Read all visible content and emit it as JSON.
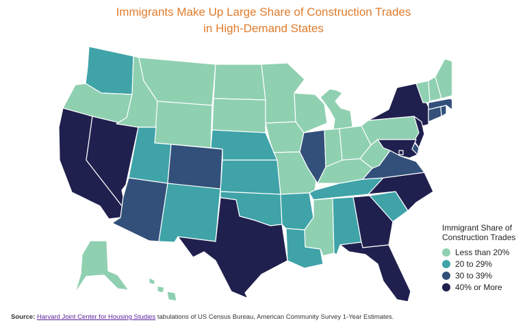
{
  "title": {
    "line1": "Immigrants Make Up Large Share of Construction Trades",
    "line2": "in High-Demand States"
  },
  "legend": {
    "title_line1": "Immigrant Share of",
    "title_line2": "Construction Trades",
    "items": [
      {
        "key": "lt20",
        "label": "Less than 20%",
        "color": "#8fd0b1"
      },
      {
        "key": "20to29",
        "label": "20 to 29%",
        "color": "#3fa3a8"
      },
      {
        "key": "30to39",
        "label": "30 to 39%",
        "color": "#32507a"
      },
      {
        "key": "40plus",
        "label": "40% or More",
        "color": "#20204f"
      }
    ]
  },
  "map": {
    "states": [
      {
        "abbr": "WA",
        "category": "20to29"
      },
      {
        "abbr": "OR",
        "category": "lt20"
      },
      {
        "abbr": "CA",
        "category": "40plus"
      },
      {
        "abbr": "NV",
        "category": "40plus"
      },
      {
        "abbr": "ID",
        "category": "lt20"
      },
      {
        "abbr": "MT",
        "category": "lt20"
      },
      {
        "abbr": "WY",
        "category": "lt20"
      },
      {
        "abbr": "UT",
        "category": "20to29"
      },
      {
        "abbr": "AZ",
        "category": "30to39"
      },
      {
        "abbr": "CO",
        "category": "30to39"
      },
      {
        "abbr": "NM",
        "category": "20to29"
      },
      {
        "abbr": "ND",
        "category": "lt20"
      },
      {
        "abbr": "SD",
        "category": "lt20"
      },
      {
        "abbr": "NE",
        "category": "20to29"
      },
      {
        "abbr": "KS",
        "category": "20to29"
      },
      {
        "abbr": "OK",
        "category": "20to29"
      },
      {
        "abbr": "TX",
        "category": "40plus"
      },
      {
        "abbr": "MN",
        "category": "lt20"
      },
      {
        "abbr": "IA",
        "category": "lt20"
      },
      {
        "abbr": "MO",
        "category": "lt20"
      },
      {
        "abbr": "AR",
        "category": "20to29"
      },
      {
        "abbr": "LA",
        "category": "20to29"
      },
      {
        "abbr": "WI",
        "category": "lt20"
      },
      {
        "abbr": "IL",
        "category": "30to39"
      },
      {
        "abbr": "MI",
        "category": "lt20"
      },
      {
        "abbr": "IN",
        "category": "lt20"
      },
      {
        "abbr": "OH",
        "category": "lt20"
      },
      {
        "abbr": "KY",
        "category": "lt20"
      },
      {
        "abbr": "TN",
        "category": "20to29"
      },
      {
        "abbr": "MS",
        "category": "lt20"
      },
      {
        "abbr": "AL",
        "category": "20to29"
      },
      {
        "abbr": "GA",
        "category": "40plus"
      },
      {
        "abbr": "FL",
        "category": "40plus"
      },
      {
        "abbr": "SC",
        "category": "20to29"
      },
      {
        "abbr": "NC",
        "category": "40plus"
      },
      {
        "abbr": "VA",
        "category": "30to39"
      },
      {
        "abbr": "WV",
        "category": "lt20"
      },
      {
        "abbr": "PA",
        "category": "lt20"
      },
      {
        "abbr": "NY",
        "category": "40plus"
      },
      {
        "abbr": "NJ",
        "category": "40plus"
      },
      {
        "abbr": "DE",
        "category": "30to39"
      },
      {
        "abbr": "MD",
        "category": "40plus"
      },
      {
        "abbr": "DC",
        "category": "40plus"
      },
      {
        "abbr": "CT",
        "category": "30to39"
      },
      {
        "abbr": "RI",
        "category": "30to39"
      },
      {
        "abbr": "MA",
        "category": "30to39"
      },
      {
        "abbr": "VT",
        "category": "lt20"
      },
      {
        "abbr": "NH",
        "category": "lt20"
      },
      {
        "abbr": "ME",
        "category": "lt20"
      },
      {
        "abbr": "AK",
        "category": "lt20"
      },
      {
        "abbr": "HI",
        "category": "lt20"
      }
    ]
  },
  "source": {
    "label": "Source:",
    "link_text": "Harvard Joint Center for Housing Studies",
    "rest": " tabulations of US Census Bureau, American Community Survey 1-Year Estimates."
  }
}
